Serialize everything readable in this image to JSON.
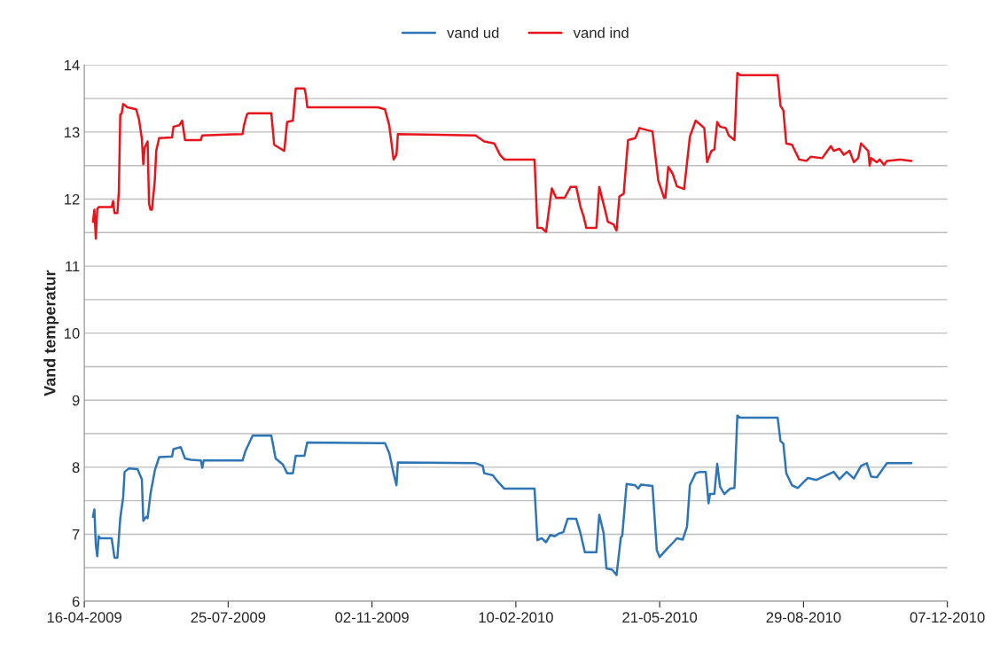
{
  "chart_data": {
    "type": "line",
    "ylabel": "Vand temperatur",
    "legend": "top",
    "grid": "y",
    "line_style": "solid",
    "xlim": [
      "2009-04-16",
      "2010-12-07"
    ],
    "xticks": [
      {
        "value": "2009-04-16",
        "label": "16-04-2009"
      },
      {
        "value": "2009-07-25",
        "label": "25-07-2009"
      },
      {
        "value": "2009-11-02",
        "label": "02-11-2009"
      },
      {
        "value": "2010-02-10",
        "label": "10-02-2010"
      },
      {
        "value": "2010-05-21",
        "label": "21-05-2010"
      },
      {
        "value": "2010-08-29",
        "label": "29-08-2010"
      },
      {
        "value": "2010-12-07",
        "label": "07-12-2010"
      }
    ],
    "ylim": [
      6,
      14
    ],
    "yticks": [
      6,
      {
        "value": 6.5,
        "label": null
      },
      7,
      {
        "value": 7.5,
        "label": null
      },
      8,
      {
        "value": 8.5,
        "label": null
      },
      9,
      {
        "value": 9.5,
        "label": null
      },
      10,
      {
        "value": 10.5,
        "label": null
      },
      11,
      {
        "value": 11.5,
        "label": null
      },
      12,
      {
        "value": 12.5,
        "label": null
      },
      13,
      {
        "value": 13.5,
        "label": null
      },
      14
    ],
    "series": [
      {
        "name": "vand ud",
        "color": "#2e75b6",
        "x": [
          "2009-04-22",
          "2009-04-23",
          "2009-04-24",
          "2009-04-25",
          "2009-04-26",
          "2009-04-27",
          "2009-05-05",
          "2009-05-07",
          "2009-05-09",
          "2009-05-11",
          "2009-05-13",
          "2009-05-14",
          "2009-05-17",
          "2009-05-23",
          "2009-05-26",
          "2009-05-27",
          "2009-05-29",
          "2009-05-30",
          "2009-06-01",
          "2009-06-04",
          "2009-06-07",
          "2009-06-16",
          "2009-06-17",
          "2009-06-22",
          "2009-06-25",
          "2009-06-29",
          "2009-07-06",
          "2009-07-07",
          "2009-07-08",
          "2009-08-04",
          "2009-08-06",
          "2009-08-11",
          "2009-08-24",
          "2009-08-27",
          "2009-09-01",
          "2009-09-04",
          "2009-09-08",
          "2009-09-10",
          "2009-09-16",
          "2009-09-18",
          "2009-11-07",
          "2009-11-11",
          "2009-11-14",
          "2009-11-17",
          "2009-11-19",
          "2009-11-20",
          "2010-01-13",
          "2010-01-18",
          "2010-01-19",
          "2010-01-25",
          "2010-01-29",
          "2010-02-02",
          "2010-02-23",
          "2010-02-25",
          "2010-02-28",
          "2010-03-03",
          "2010-03-06",
          "2010-03-09",
          "2010-03-12",
          "2010-03-15",
          "2010-03-18",
          "2010-03-24",
          "2010-03-27",
          "2010-03-30",
          "2010-04-07",
          "2010-04-09",
          "2010-04-12",
          "2010-04-14",
          "2010-04-18",
          "2010-04-21",
          "2010-04-24",
          "2010-04-25",
          "2010-04-28",
          "2010-05-04",
          "2010-05-06",
          "2010-05-08",
          "2010-05-16",
          "2010-05-19",
          "2010-05-21",
          "2010-05-26",
          "2010-05-31",
          "2010-06-02",
          "2010-06-06",
          "2010-06-09",
          "2010-06-11",
          "2010-06-15",
          "2010-06-18",
          "2010-06-22",
          "2010-06-24",
          "2010-06-25",
          "2010-06-28",
          "2010-06-30",
          "2010-07-02",
          "2010-07-05",
          "2010-07-09",
          "2010-07-12",
          "2010-07-14",
          "2010-07-16",
          "2010-08-11",
          "2010-08-13",
          "2010-08-15",
          "2010-08-17",
          "2010-08-21",
          "2010-08-25",
          "2010-09-01",
          "2010-09-07",
          "2010-09-12",
          "2010-09-16",
          "2010-09-19",
          "2010-09-23",
          "2010-09-28",
          "2010-10-03",
          "2010-10-08",
          "2010-10-12",
          "2010-10-15",
          "2010-10-19",
          "2010-10-23",
          "2010-10-26",
          "2010-11-12"
        ],
        "values": [
          7.26,
          7.37,
          6.84,
          6.67,
          6.97,
          6.94,
          6.94,
          6.65,
          6.65,
          7.24,
          7.55,
          7.93,
          7.98,
          7.97,
          7.82,
          7.2,
          7.26,
          7.24,
          7.6,
          7.95,
          8.15,
          8.16,
          8.27,
          8.3,
          8.13,
          8.11,
          8.1,
          7.99,
          8.1,
          8.1,
          8.24,
          8.47,
          8.47,
          8.13,
          8.04,
          7.91,
          7.91,
          8.17,
          8.17,
          8.37,
          8.36,
          8.36,
          8.21,
          7.91,
          7.73,
          8.07,
          8.06,
          8.02,
          7.91,
          7.88,
          7.77,
          7.68,
          7.68,
          6.91,
          6.94,
          6.88,
          6.99,
          6.97,
          7.01,
          7.03,
          7.23,
          7.23,
          7.01,
          6.73,
          6.73,
          7.29,
          7.02,
          6.49,
          6.47,
          6.39,
          6.95,
          6.98,
          7.75,
          7.73,
          7.68,
          7.74,
          7.72,
          6.76,
          6.66,
          6.78,
          6.89,
          6.94,
          6.92,
          7.11,
          7.73,
          7.91,
          7.93,
          7.93,
          7.46,
          7.6,
          7.6,
          8.05,
          7.71,
          7.6,
          7.68,
          7.69,
          8.77,
          8.74,
          8.74,
          8.39,
          8.35,
          7.91,
          7.73,
          7.69,
          7.84,
          7.81,
          7.86,
          7.9,
          7.93,
          7.82,
          7.93,
          7.83,
          8.02,
          8.06,
          7.86,
          7.85,
          7.97,
          8.06,
          8.06
        ]
      },
      {
        "name": "vand ind",
        "color": "#e8141c",
        "x": [
          "2009-04-22",
          "2009-04-23",
          "2009-04-24",
          "2009-04-25",
          "2009-04-26",
          "2009-05-05",
          "2009-05-06",
          "2009-05-07",
          "2009-05-09",
          "2009-05-10",
          "2009-05-11",
          "2009-05-12",
          "2009-05-13",
          "2009-05-16",
          "2009-05-22",
          "2009-05-24",
          "2009-05-26",
          "2009-05-27",
          "2009-05-28",
          "2009-05-30",
          "2009-05-31",
          "2009-06-01",
          "2009-06-02",
          "2009-06-04",
          "2009-06-05",
          "2009-06-07",
          "2009-06-16",
          "2009-06-17",
          "2009-06-21",
          "2009-06-23",
          "2009-06-25",
          "2009-07-06",
          "2009-07-07",
          "2009-08-04",
          "2009-08-05",
          "2009-08-07",
          "2009-08-08",
          "2009-08-24",
          "2009-08-26",
          "2009-08-29",
          "2009-09-02",
          "2009-09-04",
          "2009-09-08",
          "2009-09-09",
          "2009-09-10",
          "2009-09-16",
          "2009-09-17",
          "2009-09-18",
          "2009-11-06",
          "2009-11-11",
          "2009-11-14",
          "2009-11-17",
          "2009-11-19",
          "2009-11-20",
          "2010-01-13",
          "2010-01-15",
          "2010-01-19",
          "2010-01-26",
          "2010-01-30",
          "2010-02-02",
          "2010-02-23",
          "2010-02-25",
          "2010-02-28",
          "2010-03-03",
          "2010-03-07",
          "2010-03-10",
          "2010-03-16",
          "2010-03-20",
          "2010-03-24",
          "2010-03-27",
          "2010-03-29",
          "2010-03-31",
          "2010-04-07",
          "2010-04-09",
          "2010-04-13",
          "2010-04-15",
          "2010-04-19",
          "2010-04-21",
          "2010-04-23",
          "2010-04-26",
          "2010-04-29",
          "2010-05-04",
          "2010-05-07",
          "2010-05-12",
          "2010-05-16",
          "2010-05-20",
          "2010-05-24",
          "2010-05-25",
          "2010-05-27",
          "2010-05-30",
          "2010-06-02",
          "2010-06-07",
          "2010-06-11",
          "2010-06-15",
          "2010-06-21",
          "2010-06-23",
          "2010-06-26",
          "2010-06-28",
          "2010-06-30",
          "2010-07-02",
          "2010-07-06",
          "2010-07-08",
          "2010-07-12",
          "2010-07-14",
          "2010-07-16",
          "2010-08-11",
          "2010-08-13",
          "2010-08-15",
          "2010-08-17",
          "2010-08-21",
          "2010-08-26",
          "2010-08-31",
          "2010-09-03",
          "2010-09-11",
          "2010-09-14",
          "2010-09-17",
          "2010-09-19",
          "2010-09-23",
          "2010-09-26",
          "2010-09-30",
          "2010-10-03",
          "2010-10-06",
          "2010-10-08",
          "2010-10-12",
          "2010-10-13",
          "2010-10-14",
          "2010-10-15",
          "2010-10-19",
          "2010-10-21",
          "2010-10-24",
          "2010-10-26",
          "2010-11-04",
          "2010-11-12"
        ],
        "values": [
          11.66,
          11.84,
          11.41,
          11.85,
          11.88,
          11.88,
          11.97,
          11.79,
          11.79,
          12.11,
          13.26,
          13.28,
          13.42,
          13.37,
          13.34,
          13.19,
          12.9,
          12.52,
          12.77,
          12.86,
          11.93,
          11.84,
          11.84,
          12.28,
          12.72,
          12.91,
          12.92,
          13.08,
          13.1,
          13.17,
          12.88,
          12.88,
          12.95,
          12.97,
          13.1,
          13.26,
          13.28,
          13.28,
          12.81,
          12.77,
          12.72,
          13.15,
          13.17,
          13.43,
          13.65,
          13.65,
          13.56,
          13.37,
          13.37,
          13.34,
          13.1,
          12.59,
          12.66,
          12.97,
          12.95,
          12.92,
          12.86,
          12.83,
          12.66,
          12.59,
          12.59,
          11.57,
          11.57,
          11.51,
          12.16,
          12.02,
          12.02,
          12.18,
          12.18,
          11.88,
          11.75,
          11.57,
          11.57,
          12.18,
          11.84,
          11.66,
          11.62,
          11.53,
          12.04,
          12.08,
          12.88,
          12.91,
          13.06,
          13.03,
          13.01,
          12.28,
          12.02,
          12.02,
          12.48,
          12.38,
          12.19,
          12.15,
          12.93,
          13.17,
          13.06,
          12.55,
          12.72,
          12.74,
          13.15,
          13.08,
          13.06,
          12.95,
          12.88,
          13.88,
          13.85,
          13.85,
          13.39,
          13.32,
          12.83,
          12.81,
          12.59,
          12.57,
          12.63,
          12.61,
          12.7,
          12.79,
          12.72,
          12.75,
          12.66,
          12.72,
          12.55,
          12.61,
          12.83,
          12.74,
          12.72,
          12.5,
          12.61,
          12.55,
          12.59,
          12.51,
          12.57,
          12.59,
          12.57
        ]
      }
    ]
  }
}
